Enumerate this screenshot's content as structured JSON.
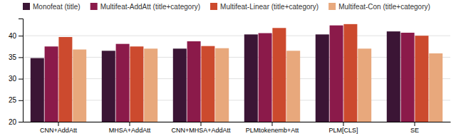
{
  "chart_data": {
    "type": "bar",
    "categories": [
      "CNN+AddAtt",
      "MHSA+AddAtt",
      "CNN+MHSA+AddAtt",
      "PLMtokenemb+Att",
      "PLM[CLS]",
      "SE"
    ],
    "series": [
      {
        "name": "Monofeat (title)",
        "color": "#3b1535",
        "values": [
          34.8,
          36.5,
          37.0,
          40.3,
          40.3,
          41.0
        ]
      },
      {
        "name": "Multifeat-AddAtt (title+category)",
        "color": "#8b1a4a",
        "values": [
          37.5,
          38.1,
          38.7,
          40.6,
          42.4,
          40.7
        ]
      },
      {
        "name": "Multifeat-Linear (title+category)",
        "color": "#cc4a2e",
        "values": [
          39.7,
          37.5,
          37.6,
          41.8,
          42.7,
          40.0
        ]
      },
      {
        "name": "Multifeat-Con (title+category)",
        "color": "#e8a87c",
        "values": [
          36.8,
          37.0,
          37.1,
          36.5,
          37.0,
          35.9
        ]
      }
    ],
    "ylim": [
      20,
      44
    ],
    "yticks": [
      20,
      25,
      30,
      35,
      40
    ],
    "grid": true,
    "legend": "upper left"
  }
}
